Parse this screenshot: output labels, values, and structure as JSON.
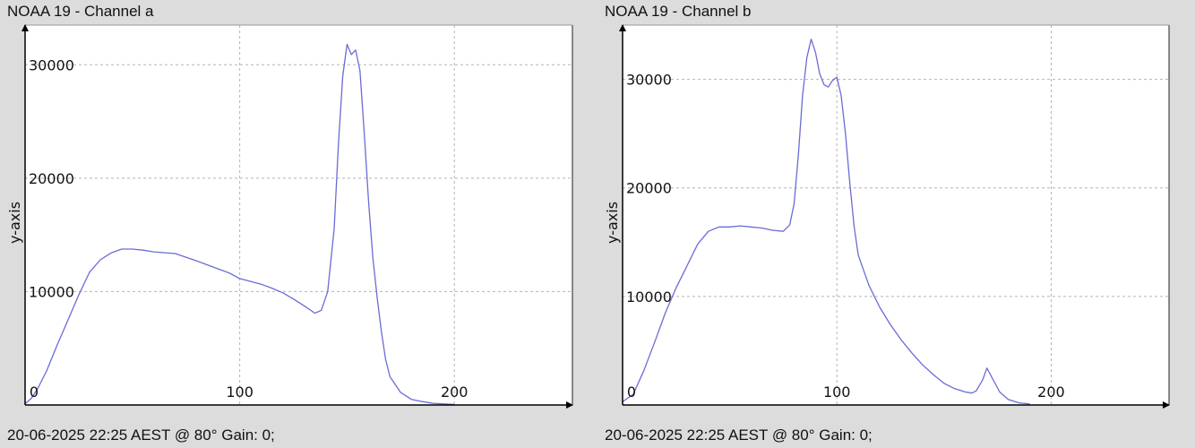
{
  "chart_data": [
    {
      "type": "line",
      "title": "NOAA 19 - Channel a",
      "footer": "20-06-2025 22:25 AEST @ 80° Gain: 0;",
      "xlabel": "",
      "ylabel": "y-axis",
      "xlim": [
        0,
        255
      ],
      "ylim": [
        0,
        33500
      ],
      "x_ticks": [
        0,
        100,
        200
      ],
      "y_ticks": [
        10000,
        20000,
        30000
      ],
      "grid": true,
      "line_color": "#6b6bd6",
      "series": [
        {
          "x": [
            0,
            3,
            6,
            10,
            15,
            20,
            25,
            30,
            35,
            40,
            45,
            50,
            55,
            60,
            70,
            80,
            90,
            95,
            100,
            110,
            115,
            120,
            125,
            130,
            135,
            138,
            141,
            144,
            146,
            148,
            150,
            152,
            154,
            156,
            158,
            160,
            162,
            164,
            166,
            168,
            170,
            175,
            180,
            185,
            190,
            200
          ],
          "y": [
            100,
            600,
            1500,
            3000,
            5300,
            7500,
            9700,
            11700,
            12800,
            13400,
            13750,
            13750,
            13650,
            13500,
            13350,
            12700,
            12000,
            11650,
            11150,
            10650,
            10300,
            9900,
            9350,
            8750,
            8100,
            8350,
            10000,
            15500,
            23000,
            29000,
            31800,
            30900,
            31300,
            29500,
            24000,
            18000,
            13000,
            9500,
            6500,
            4000,
            2500,
            1100,
            500,
            300,
            150,
            50
          ]
        }
      ]
    },
    {
      "type": "line",
      "title": "NOAA 19 - Channel b",
      "footer": "20-06-2025 22:25 AEST @ 80° Gain: 0;",
      "xlabel": "",
      "ylabel": "y-axis",
      "xlim": [
        0,
        255
      ],
      "ylim": [
        0,
        35000
      ],
      "x_ticks": [
        0,
        100,
        200
      ],
      "y_ticks": [
        10000,
        20000,
        30000
      ],
      "grid": true,
      "line_color": "#6b6bd6",
      "series": [
        {
          "x": [
            0,
            5,
            10,
            15,
            20,
            25,
            30,
            35,
            40,
            45,
            50,
            55,
            60,
            65,
            70,
            75,
            78,
            80,
            82,
            84,
            86,
            88,
            90,
            92,
            94,
            96,
            98,
            100,
            102,
            104,
            106,
            108,
            110,
            115,
            120,
            125,
            130,
            135,
            140,
            145,
            150,
            155,
            160,
            163,
            165,
            168,
            170,
            173,
            176,
            180,
            185,
            190
          ],
          "y": [
            300,
            1000,
            3200,
            5800,
            8500,
            10800,
            12800,
            14800,
            16000,
            16400,
            16400,
            16500,
            16400,
            16300,
            16100,
            16000,
            16600,
            18500,
            23000,
            28500,
            32000,
            33700,
            32500,
            30500,
            29500,
            29300,
            29900,
            30200,
            28500,
            25000,
            20500,
            16500,
            13800,
            11000,
            9000,
            7400,
            6000,
            4800,
            3700,
            2800,
            2000,
            1500,
            1200,
            1100,
            1300,
            2300,
            3400,
            2300,
            1200,
            500,
            200,
            100
          ]
        }
      ]
    }
  ]
}
